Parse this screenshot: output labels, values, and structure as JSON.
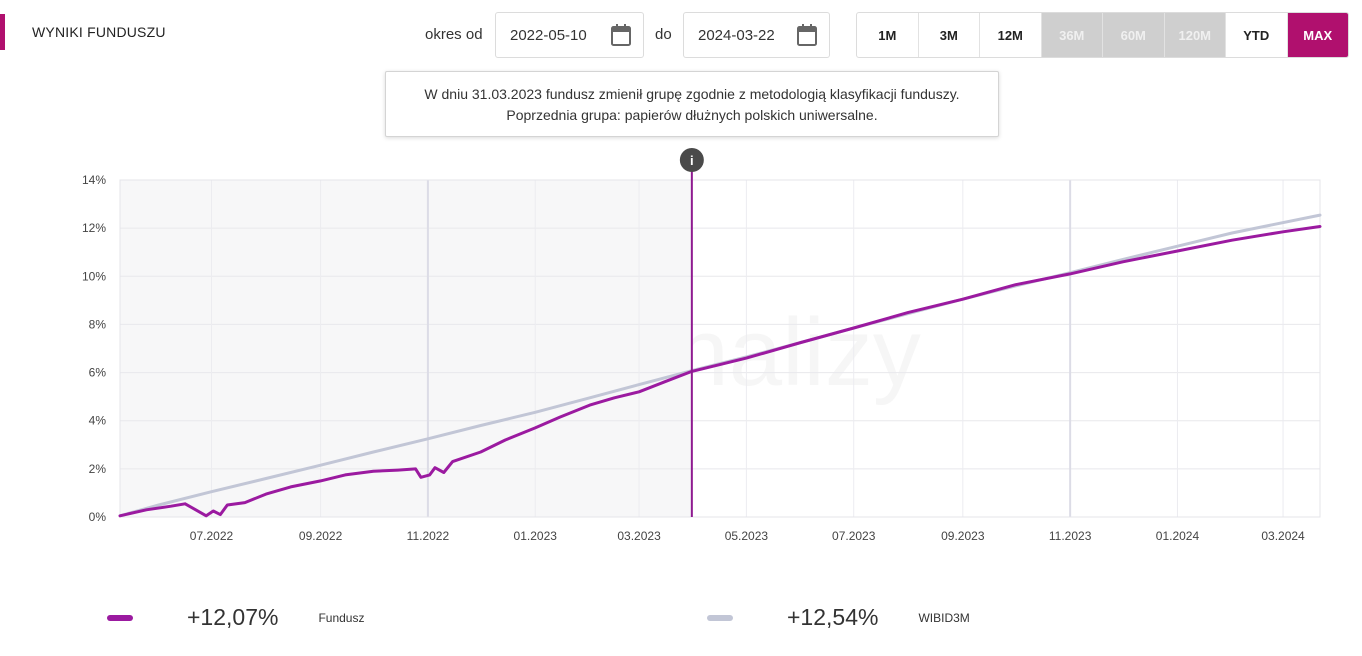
{
  "header": {
    "title": "WYNIKI FUNDUSZU",
    "period_from_label": "okres od",
    "date_from": "2022-05-10",
    "period_to_label": "do",
    "date_to": "2024-03-22",
    "ranges": [
      {
        "label": "1M",
        "state": "normal"
      },
      {
        "label": "3M",
        "state": "normal"
      },
      {
        "label": "12M",
        "state": "normal"
      },
      {
        "label": "36M",
        "state": "disabled"
      },
      {
        "label": "60M",
        "state": "disabled"
      },
      {
        "label": "120M",
        "state": "disabled"
      },
      {
        "label": "YTD",
        "state": "normal"
      },
      {
        "label": "MAX",
        "state": "active"
      }
    ]
  },
  "tooltip": {
    "line1": "W dniu 31.03.2023 fundusz zmienił grupę zgodnie z metodologią klasyfikacji funduszy.",
    "line2": "Poprzednia grupa: papierów dłużnych polskich uniwersalne.",
    "marker": "i"
  },
  "colors": {
    "accent": "#b0106e",
    "fund": "#9b1aa0",
    "benchmark": "#c2c6d6",
    "shaded": "#f7f7f8",
    "marker": "#4a4a4a"
  },
  "chart_data": {
    "type": "line",
    "x_start": "2022-05-10",
    "x_end": "2024-03-22",
    "marker_date": "2023-03-31",
    "shaded_range": [
      "2022-05-10",
      "2023-03-31"
    ],
    "ylim": [
      0,
      14
    ],
    "yticks": [
      0,
      2,
      4,
      6,
      8,
      10,
      12,
      14
    ],
    "ytick_labels": [
      "0%",
      "2%",
      "4%",
      "6%",
      "8%",
      "10%",
      "12%",
      "14%"
    ],
    "xticks": [
      {
        "date": "2022-07-01",
        "label": "07.2022"
      },
      {
        "date": "2022-09-01",
        "label": "09.2022"
      },
      {
        "date": "2022-11-01",
        "label": "11.2022"
      },
      {
        "date": "2023-01-01",
        "label": "01.2023"
      },
      {
        "date": "2023-03-01",
        "label": "03.2023"
      },
      {
        "date": "2023-05-01",
        "label": "05.2023"
      },
      {
        "date": "2023-07-01",
        "label": "07.2023"
      },
      {
        "date": "2023-09-01",
        "label": "09.2023"
      },
      {
        "date": "2023-11-01",
        "label": "11.2023"
      },
      {
        "date": "2024-01-01",
        "label": "01.2024"
      },
      {
        "date": "2024-03-01",
        "label": "03.2024"
      }
    ],
    "series": [
      {
        "name": "Fundusz",
        "points": [
          [
            "2022-05-10",
            0.05
          ],
          [
            "2022-05-25",
            0.3
          ],
          [
            "2022-06-08",
            0.45
          ],
          [
            "2022-06-16",
            0.55
          ],
          [
            "2022-06-22",
            0.3
          ],
          [
            "2022-06-28",
            0.05
          ],
          [
            "2022-07-02",
            0.25
          ],
          [
            "2022-07-06",
            0.1
          ],
          [
            "2022-07-10",
            0.5
          ],
          [
            "2022-07-20",
            0.6
          ],
          [
            "2022-08-01",
            0.95
          ],
          [
            "2022-08-15",
            1.25
          ],
          [
            "2022-09-01",
            1.5
          ],
          [
            "2022-09-15",
            1.75
          ],
          [
            "2022-10-01",
            1.9
          ],
          [
            "2022-10-15",
            1.95
          ],
          [
            "2022-10-25",
            2.0
          ],
          [
            "2022-10-28",
            1.65
          ],
          [
            "2022-11-02",
            1.75
          ],
          [
            "2022-11-05",
            2.05
          ],
          [
            "2022-11-10",
            1.85
          ],
          [
            "2022-11-15",
            2.3
          ],
          [
            "2022-12-01",
            2.7
          ],
          [
            "2022-12-15",
            3.2
          ],
          [
            "2023-01-01",
            3.7
          ],
          [
            "2023-01-15",
            4.15
          ],
          [
            "2023-02-01",
            4.65
          ],
          [
            "2023-02-15",
            4.95
          ],
          [
            "2023-03-01",
            5.2
          ],
          [
            "2023-03-15",
            5.6
          ],
          [
            "2023-03-31",
            6.05
          ],
          [
            "2023-05-01",
            6.6
          ],
          [
            "2023-06-01",
            7.25
          ],
          [
            "2023-07-01",
            7.85
          ],
          [
            "2023-08-01",
            8.5
          ],
          [
            "2023-09-01",
            9.05
          ],
          [
            "2023-10-01",
            9.65
          ],
          [
            "2023-11-01",
            10.1
          ],
          [
            "2023-12-01",
            10.6
          ],
          [
            "2024-01-01",
            11.05
          ],
          [
            "2024-02-01",
            11.5
          ],
          [
            "2024-03-01",
            11.85
          ],
          [
            "2024-03-22",
            12.07
          ]
        ]
      },
      {
        "name": "WIBID3M",
        "points": [
          [
            "2022-05-10",
            0.05
          ],
          [
            "2022-06-01",
            0.5
          ],
          [
            "2022-07-01",
            1.05
          ],
          [
            "2022-08-01",
            1.6
          ],
          [
            "2022-09-01",
            2.15
          ],
          [
            "2022-10-01",
            2.7
          ],
          [
            "2022-11-01",
            3.25
          ],
          [
            "2022-12-01",
            3.8
          ],
          [
            "2023-01-01",
            4.35
          ],
          [
            "2023-02-01",
            4.95
          ],
          [
            "2023-03-01",
            5.5
          ],
          [
            "2023-04-01",
            6.1
          ],
          [
            "2023-05-01",
            6.65
          ],
          [
            "2023-06-01",
            7.25
          ],
          [
            "2023-07-01",
            7.85
          ],
          [
            "2023-08-01",
            8.45
          ],
          [
            "2023-09-01",
            9.05
          ],
          [
            "2023-10-01",
            9.6
          ],
          [
            "2023-11-01",
            10.15
          ],
          [
            "2023-12-01",
            10.7
          ],
          [
            "2024-01-01",
            11.25
          ],
          [
            "2024-02-01",
            11.8
          ],
          [
            "2024-03-22",
            12.54
          ]
        ]
      }
    ]
  },
  "legend": [
    {
      "name": "Fundusz",
      "value": "+12,07%"
    },
    {
      "name": "WIBID3M",
      "value": "+12,54%"
    }
  ]
}
